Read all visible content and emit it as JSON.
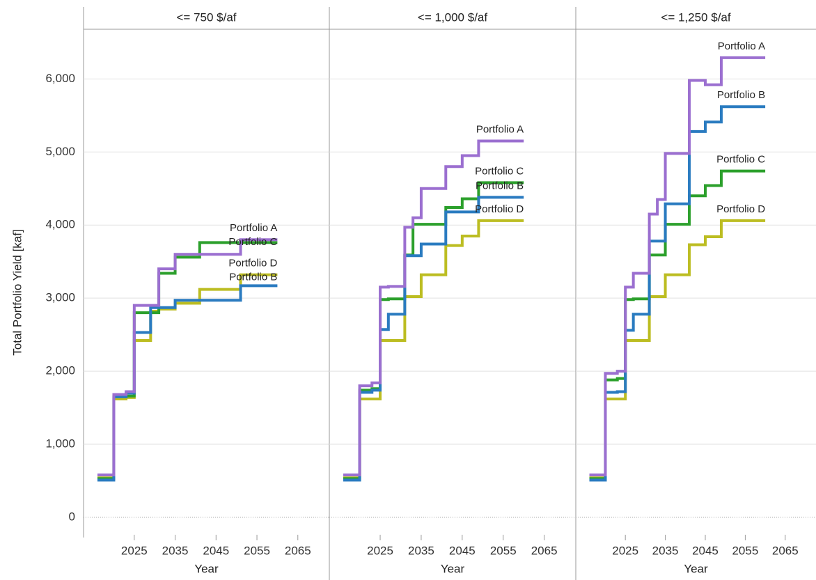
{
  "y_label": "Total Portfolio Yield [kaf]",
  "chart_data": [
    {
      "type": "line",
      "title": "<= 750 $/af",
      "x_label": "Year",
      "drawstyle": "steps-post",
      "x": [
        2016,
        2020,
        2023,
        2025,
        2029,
        2031,
        2035,
        2041,
        2045,
        2051,
        2060
      ],
      "xlim": [
        2012.6,
        2072.7
      ],
      "xticks": [
        2025,
        2035,
        2045,
        2055,
        2065
      ],
      "ylim": [
        -210,
        6680
      ],
      "yticks": [
        0,
        {
          "value": 1000,
          "label": "1,000"
        },
        {
          "value": 2000,
          "label": "2,000"
        },
        {
          "value": 3000,
          "label": "3,000"
        },
        {
          "value": 4000,
          "label": "4,000"
        },
        {
          "value": 5000,
          "label": "5,000"
        },
        {
          "value": 6000,
          "label": "6,000"
        }
      ],
      "grid": true,
      "series": [
        {
          "name": "Portfolio A",
          "color": "#9b6fd0",
          "values": [
            580,
            1680,
            1720,
            2900,
            2900,
            3400,
            3600,
            3600,
            3600,
            3800,
            3800
          ]
        },
        {
          "name": "Portfolio B",
          "color": "#2a7bc0",
          "values": [
            510,
            1650,
            1700,
            2530,
            2870,
            2870,
            2970,
            2970,
            2970,
            3170,
            3170
          ]
        },
        {
          "name": "Portfolio C",
          "color": "#2ca02c",
          "values": [
            530,
            1650,
            1660,
            2800,
            2800,
            3340,
            3560,
            3760,
            3760,
            3760,
            3760
          ]
        },
        {
          "name": "Portfolio D",
          "color": "#bcbd22",
          "values": [
            540,
            1620,
            1640,
            2420,
            2820,
            2850,
            2930,
            3120,
            3120,
            3320,
            3320
          ]
        }
      ]
    },
    {
      "type": "line",
      "title": "<= 1,000 $/af",
      "x_label": "Year",
      "drawstyle": "steps-post",
      "x": [
        2016,
        2020,
        2023,
        2025,
        2027,
        2029,
        2031,
        2033,
        2035,
        2039,
        2041,
        2045,
        2049,
        2051,
        2060
      ],
      "xlim": [
        2012.6,
        2072.7
      ],
      "xticks": [
        2025,
        2035,
        2045,
        2055,
        2065
      ],
      "ylim": [
        -210,
        6680
      ],
      "yticks": [
        0,
        {
          "value": 1000,
          "label": "1,000"
        },
        {
          "value": 2000,
          "label": "2,000"
        },
        {
          "value": 3000,
          "label": "3,000"
        },
        {
          "value": 4000,
          "label": "4,000"
        },
        {
          "value": 5000,
          "label": "5,000"
        },
        {
          "value": 6000,
          "label": "6,000"
        }
      ],
      "grid": true,
      "series": [
        {
          "name": "Portfolio A",
          "color": "#9b6fd0",
          "values": [
            580,
            1800,
            1840,
            3150,
            3160,
            3160,
            3970,
            4100,
            4500,
            4500,
            4800,
            4950,
            5150,
            5150,
            5150
          ]
        },
        {
          "name": "Portfolio B",
          "color": "#2a7bc0",
          "values": [
            510,
            1710,
            1740,
            2570,
            2780,
            2780,
            3580,
            3580,
            3740,
            3740,
            4180,
            4180,
            4380,
            4380,
            4380
          ]
        },
        {
          "name": "Portfolio C",
          "color": "#2ca02c",
          "values": [
            530,
            1740,
            1760,
            2980,
            2990,
            2990,
            3590,
            4010,
            4010,
            4010,
            4240,
            4360,
            4580,
            4580,
            4580
          ]
        },
        {
          "name": "Portfolio D",
          "color": "#bcbd22",
          "values": [
            540,
            1620,
            1620,
            2420,
            2420,
            2420,
            3020,
            3020,
            3320,
            3320,
            3720,
            3850,
            4060,
            4060,
            4060
          ]
        }
      ]
    },
    {
      "type": "line",
      "title": "<= 1,250 $/af",
      "x_label": "Year",
      "drawstyle": "steps-post",
      "x": [
        2016,
        2020,
        2023,
        2025,
        2027,
        2029,
        2031,
        2033,
        2035,
        2039,
        2041,
        2045,
        2049,
        2051,
        2060
      ],
      "xlim": [
        2012.6,
        2072.7
      ],
      "xticks": [
        2025,
        2035,
        2045,
        2055,
        2065
      ],
      "ylim": [
        -210,
        6680
      ],
      "yticks": [
        0,
        {
          "value": 1000,
          "label": "1,000"
        },
        {
          "value": 2000,
          "label": "2,000"
        },
        {
          "value": 3000,
          "label": "3,000"
        },
        {
          "value": 4000,
          "label": "4,000"
        },
        {
          "value": 5000,
          "label": "5,000"
        },
        {
          "value": 6000,
          "label": "6,000"
        }
      ],
      "grid": true,
      "series": [
        {
          "name": "Portfolio A",
          "color": "#9b6fd0",
          "values": [
            580,
            1970,
            2000,
            3150,
            3340,
            3340,
            4150,
            4350,
            4980,
            4980,
            5980,
            5920,
            6290,
            6290,
            6290
          ]
        },
        {
          "name": "Portfolio B",
          "color": "#2a7bc0",
          "values": [
            510,
            1710,
            1720,
            2560,
            2780,
            2780,
            3780,
            3780,
            4290,
            4290,
            5280,
            5410,
            5620,
            5620,
            5620
          ]
        },
        {
          "name": "Portfolio C",
          "color": "#2ca02c",
          "values": [
            530,
            1880,
            1900,
            2980,
            2990,
            2990,
            3590,
            3590,
            4010,
            4010,
            4400,
            4540,
            4740,
            4740,
            4740
          ]
        },
        {
          "name": "Portfolio D",
          "color": "#bcbd22",
          "values": [
            540,
            1620,
            1620,
            2420,
            2420,
            2420,
            3020,
            3020,
            3320,
            3320,
            3730,
            3840,
            4060,
            4060,
            4060
          ]
        }
      ]
    }
  ]
}
